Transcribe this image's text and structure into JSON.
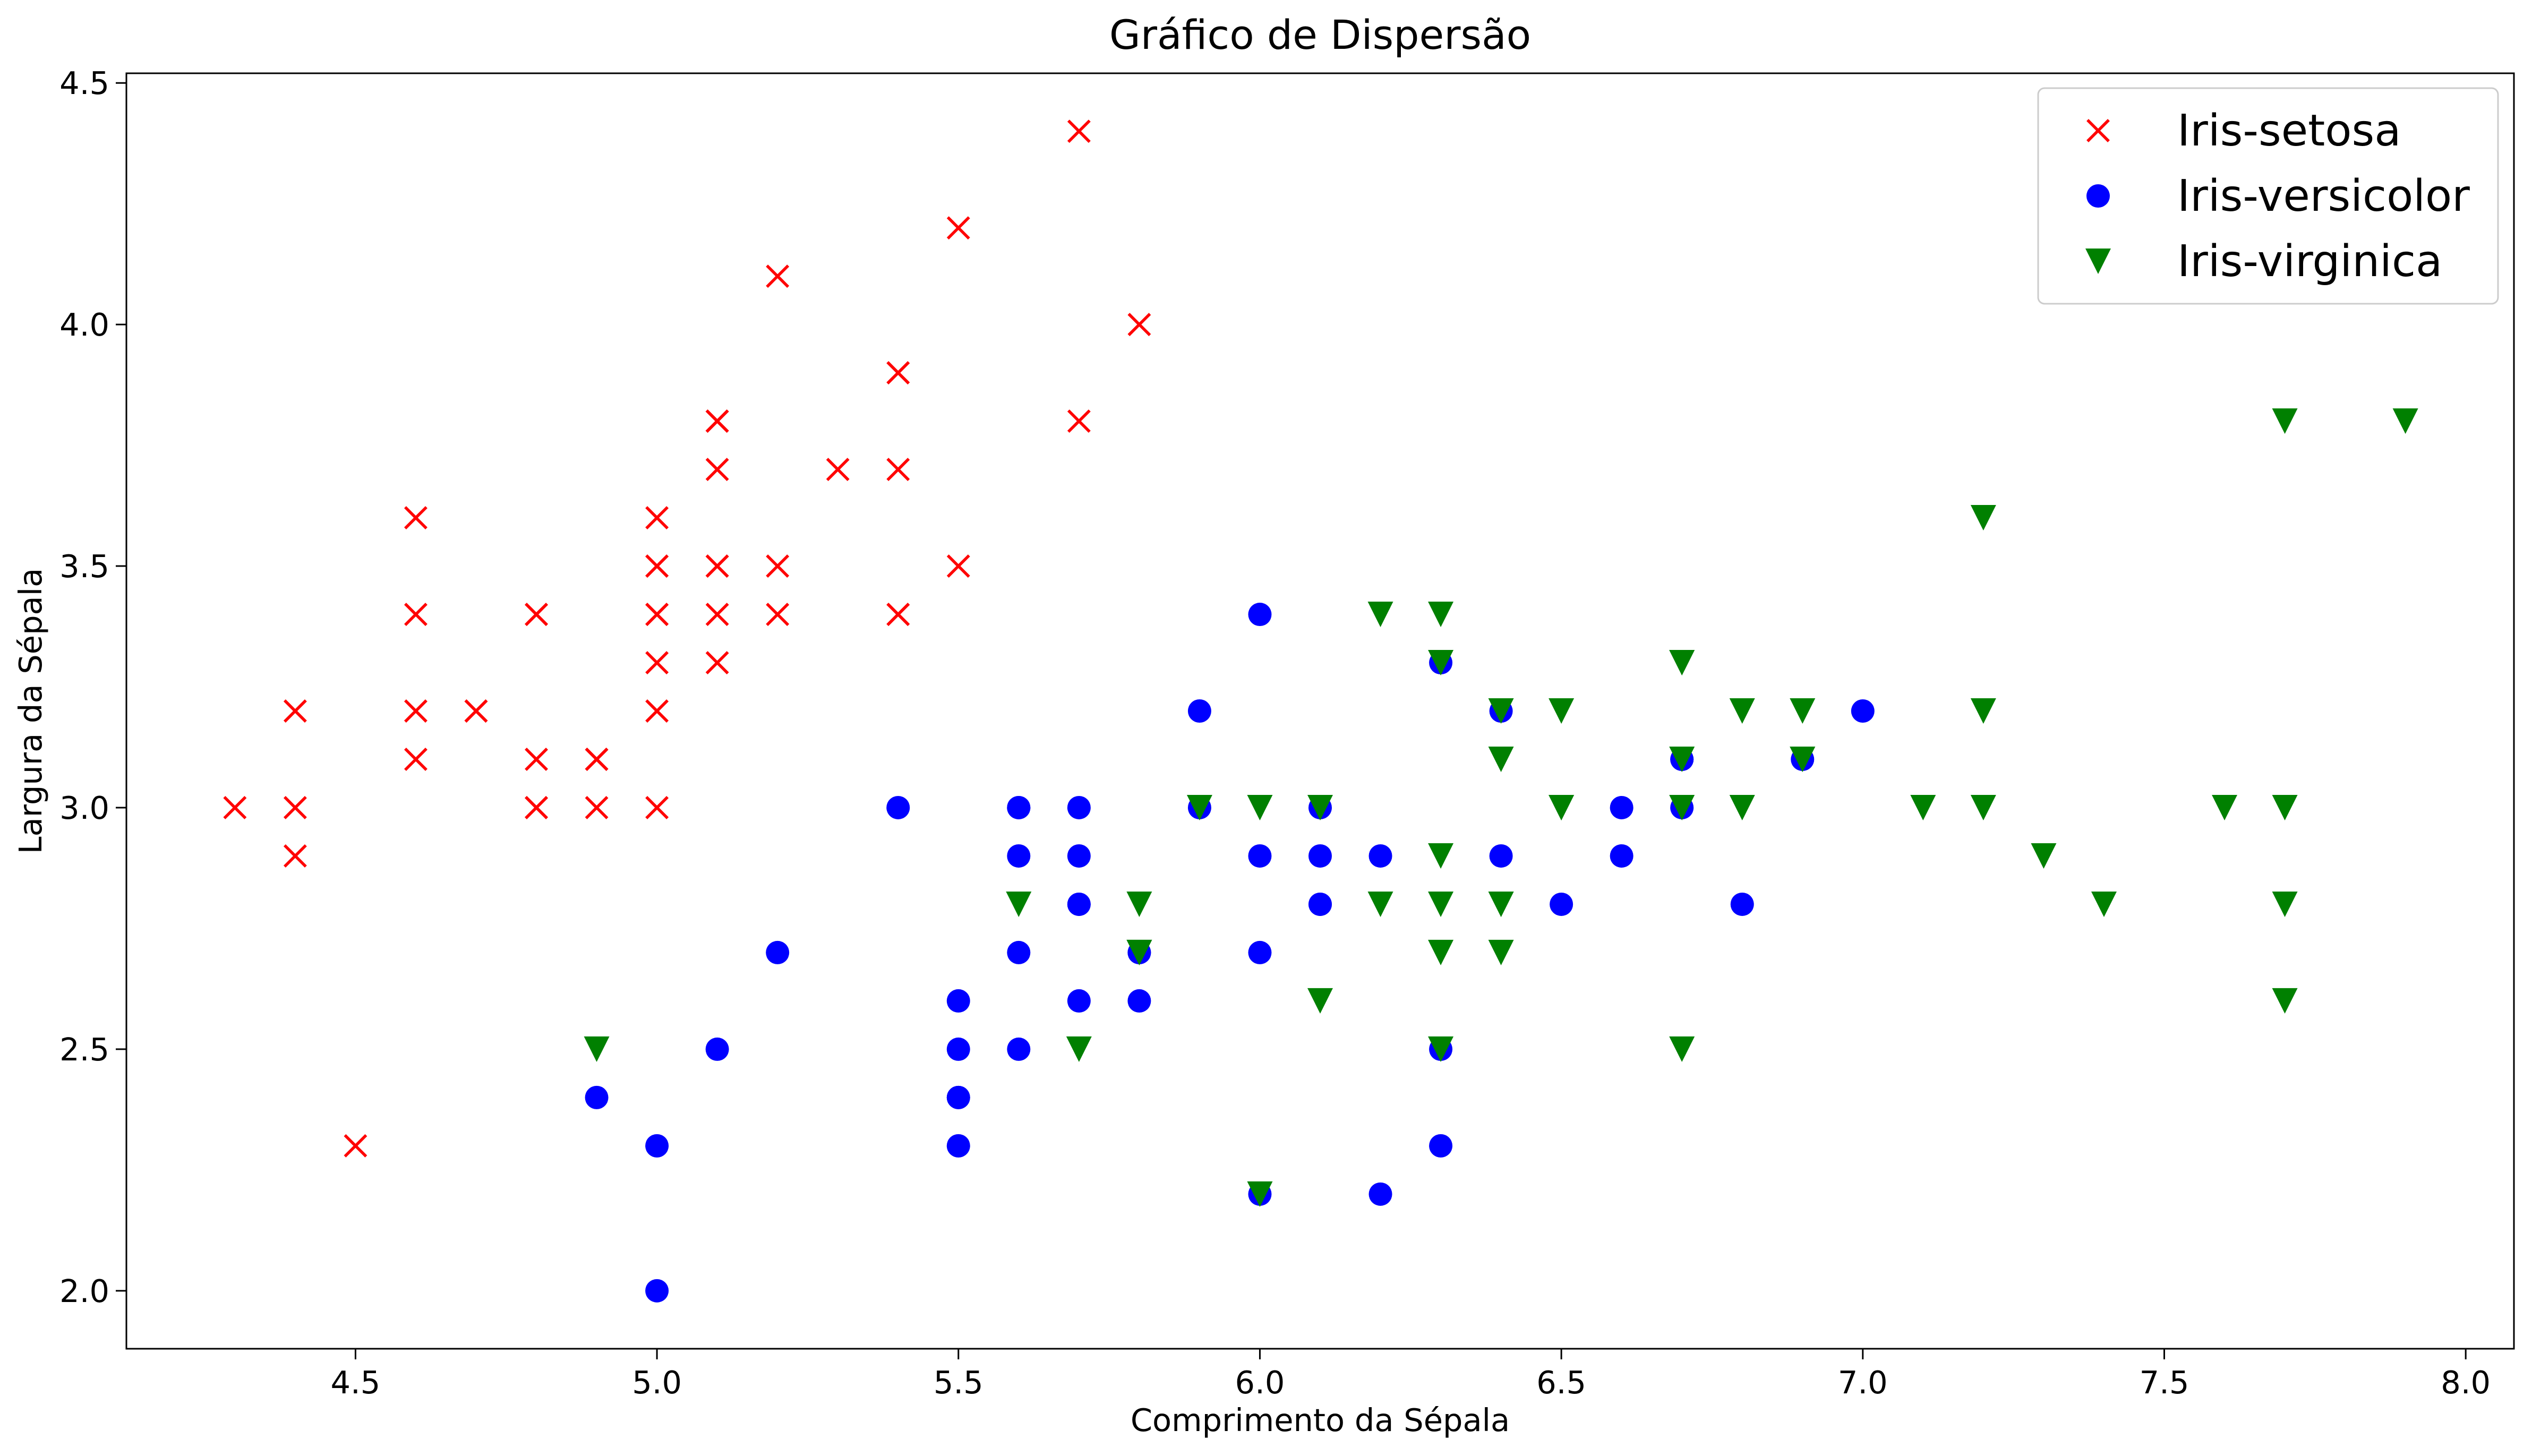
{
  "chart_data": {
    "type": "scatter",
    "title": "Gráfico de Dispersão",
    "xlabel": "Comprimento da Sépala",
    "ylabel": "Largura da Sépala",
    "xlim": [
      4.12,
      8.08
    ],
    "ylim": [
      1.88,
      4.52
    ],
    "xticks": [
      "4.5",
      "5.0",
      "5.5",
      "6.0",
      "6.5",
      "7.0",
      "7.5",
      "8.0"
    ],
    "yticks": [
      "2.0",
      "2.5",
      "3.0",
      "3.5",
      "4.0",
      "4.5"
    ],
    "grid": false,
    "legend_position": "top-right",
    "series": [
      {
        "name": "Iris-setosa",
        "marker": "x",
        "color": "#ff0000",
        "points": [
          [
            5.1,
            3.5
          ],
          [
            4.9,
            3.0
          ],
          [
            4.7,
            3.2
          ],
          [
            4.6,
            3.1
          ],
          [
            5.0,
            3.6
          ],
          [
            5.4,
            3.9
          ],
          [
            4.6,
            3.4
          ],
          [
            5.0,
            3.4
          ],
          [
            4.4,
            2.9
          ],
          [
            4.9,
            3.1
          ],
          [
            5.4,
            3.7
          ],
          [
            4.8,
            3.4
          ],
          [
            4.8,
            3.0
          ],
          [
            4.3,
            3.0
          ],
          [
            5.8,
            4.0
          ],
          [
            5.7,
            4.4
          ],
          [
            5.4,
            3.9
          ],
          [
            5.1,
            3.5
          ],
          [
            5.7,
            3.8
          ],
          [
            5.1,
            3.8
          ],
          [
            5.4,
            3.4
          ],
          [
            5.1,
            3.7
          ],
          [
            4.6,
            3.6
          ],
          [
            5.1,
            3.3
          ],
          [
            4.8,
            3.4
          ],
          [
            5.0,
            3.0
          ],
          [
            5.0,
            3.4
          ],
          [
            5.2,
            3.5
          ],
          [
            5.2,
            3.4
          ],
          [
            4.7,
            3.2
          ],
          [
            4.8,
            3.1
          ],
          [
            5.4,
            3.4
          ],
          [
            5.2,
            4.1
          ],
          [
            5.5,
            4.2
          ],
          [
            4.9,
            3.1
          ],
          [
            5.0,
            3.2
          ],
          [
            5.5,
            3.5
          ],
          [
            4.9,
            3.1
          ],
          [
            4.4,
            3.0
          ],
          [
            5.1,
            3.4
          ],
          [
            5.0,
            3.5
          ],
          [
            4.5,
            2.3
          ],
          [
            4.4,
            3.2
          ],
          [
            5.0,
            3.5
          ],
          [
            5.1,
            3.8
          ],
          [
            4.8,
            3.0
          ],
          [
            5.1,
            3.8
          ],
          [
            4.6,
            3.2
          ],
          [
            5.3,
            3.7
          ],
          [
            5.0,
            3.3
          ]
        ]
      },
      {
        "name": "Iris-versicolor",
        "marker": "o",
        "color": "#0000ff",
        "points": [
          [
            7.0,
            3.2
          ],
          [
            6.4,
            3.2
          ],
          [
            6.9,
            3.1
          ],
          [
            5.5,
            2.3
          ],
          [
            6.5,
            2.8
          ],
          [
            5.7,
            2.8
          ],
          [
            6.3,
            3.3
          ],
          [
            4.9,
            2.4
          ],
          [
            6.6,
            2.9
          ],
          [
            5.2,
            2.7
          ],
          [
            5.0,
            2.0
          ],
          [
            5.9,
            3.0
          ],
          [
            6.0,
            2.2
          ],
          [
            6.1,
            2.9
          ],
          [
            5.6,
            2.9
          ],
          [
            6.7,
            3.1
          ],
          [
            5.6,
            3.0
          ],
          [
            5.8,
            2.7
          ],
          [
            6.2,
            2.2
          ],
          [
            5.6,
            2.5
          ],
          [
            5.9,
            3.2
          ],
          [
            6.1,
            2.8
          ],
          [
            6.3,
            2.5
          ],
          [
            6.1,
            2.8
          ],
          [
            6.4,
            2.9
          ],
          [
            6.6,
            3.0
          ],
          [
            6.8,
            2.8
          ],
          [
            6.7,
            3.0
          ],
          [
            6.0,
            2.9
          ],
          [
            5.7,
            2.6
          ],
          [
            5.5,
            2.4
          ],
          [
            5.5,
            2.4
          ],
          [
            5.8,
            2.7
          ],
          [
            6.0,
            2.7
          ],
          [
            5.4,
            3.0
          ],
          [
            6.0,
            3.4
          ],
          [
            6.7,
            3.1
          ],
          [
            6.3,
            2.3
          ],
          [
            5.6,
            3.0
          ],
          [
            5.5,
            2.5
          ],
          [
            5.5,
            2.6
          ],
          [
            6.1,
            3.0
          ],
          [
            5.8,
            2.6
          ],
          [
            5.0,
            2.3
          ],
          [
            5.6,
            2.7
          ],
          [
            5.7,
            3.0
          ],
          [
            5.7,
            2.9
          ],
          [
            6.2,
            2.9
          ],
          [
            5.1,
            2.5
          ],
          [
            5.7,
            2.8
          ]
        ]
      },
      {
        "name": "Iris-virginica",
        "marker": "v",
        "color": "#008000",
        "points": [
          [
            6.3,
            3.3
          ],
          [
            5.8,
            2.7
          ],
          [
            7.1,
            3.0
          ],
          [
            6.3,
            2.9
          ],
          [
            6.5,
            3.0
          ],
          [
            7.6,
            3.0
          ],
          [
            4.9,
            2.5
          ],
          [
            7.3,
            2.9
          ],
          [
            6.7,
            2.5
          ],
          [
            7.2,
            3.6
          ],
          [
            6.5,
            3.2
          ],
          [
            6.4,
            2.7
          ],
          [
            6.8,
            3.0
          ],
          [
            5.7,
            2.5
          ],
          [
            5.8,
            2.8
          ],
          [
            6.4,
            3.2
          ],
          [
            6.5,
            3.0
          ],
          [
            7.7,
            3.8
          ],
          [
            7.7,
            2.6
          ],
          [
            6.0,
            2.2
          ],
          [
            6.9,
            3.2
          ],
          [
            5.6,
            2.8
          ],
          [
            7.7,
            2.8
          ],
          [
            6.3,
            2.7
          ],
          [
            6.7,
            3.3
          ],
          [
            7.2,
            3.2
          ],
          [
            6.2,
            2.8
          ],
          [
            6.1,
            3.0
          ],
          [
            6.4,
            2.8
          ],
          [
            7.2,
            3.0
          ],
          [
            7.4,
            2.8
          ],
          [
            7.9,
            3.8
          ],
          [
            6.4,
            2.8
          ],
          [
            6.3,
            2.8
          ],
          [
            6.1,
            2.6
          ],
          [
            7.7,
            3.0
          ],
          [
            6.3,
            3.4
          ],
          [
            6.4,
            3.1
          ],
          [
            6.0,
            3.0
          ],
          [
            6.9,
            3.1
          ],
          [
            6.7,
            3.1
          ],
          [
            6.9,
            3.1
          ],
          [
            5.8,
            2.7
          ],
          [
            6.8,
            3.2
          ],
          [
            6.7,
            3.3
          ],
          [
            6.7,
            3.0
          ],
          [
            6.3,
            2.5
          ],
          [
            6.5,
            3.0
          ],
          [
            6.2,
            3.4
          ],
          [
            5.9,
            3.0
          ]
        ]
      }
    ]
  }
}
